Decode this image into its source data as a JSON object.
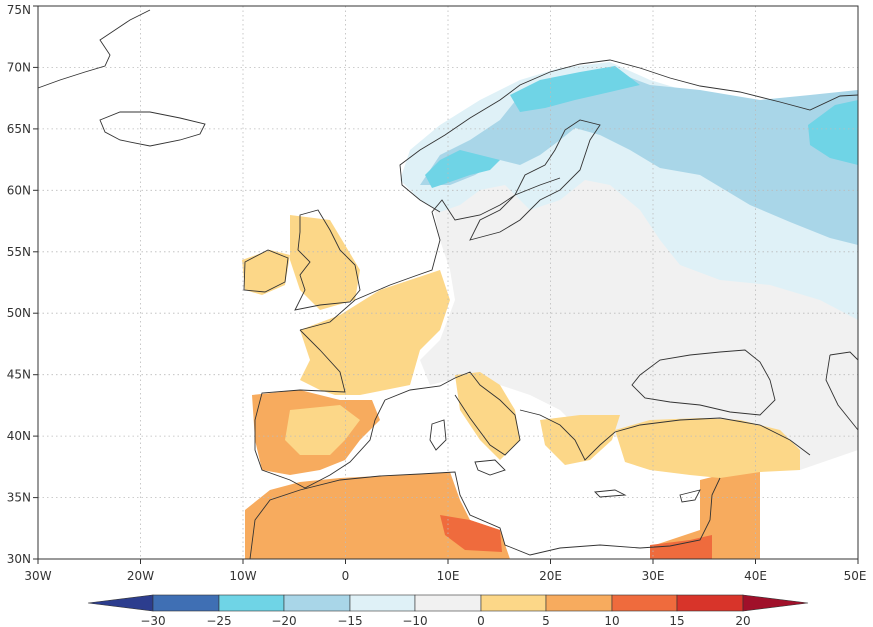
{
  "map": {
    "lon_range": [
      -30,
      50
    ],
    "lat_range": [
      30,
      75
    ],
    "lon_ticks": [
      "30W",
      "20W",
      "10W",
      "0",
      "10E",
      "20E",
      "30E",
      "40E",
      "50E"
    ],
    "lat_ticks": [
      "30N",
      "35N",
      "40N",
      "45N",
      "50N",
      "55N",
      "60N",
      "65N",
      "70N",
      "75N"
    ],
    "gridlines": "dotted",
    "colors": {
      "anomaly_warm_1": "#fcd788",
      "anomaly_warm_2": "#f7ab5e",
      "anomaly_warm_3": "#ef6b3d",
      "anomaly_near_zero": "#f1f1f1",
      "anomaly_cold_1": "#dff1f7",
      "anomaly_cold_2": "#a9d6e8",
      "anomaly_cold_3": "#6fd4e6",
      "coastline": "#333333"
    }
  },
  "colorbar": {
    "labels": [
      "−30",
      "−25",
      "−20",
      "−15",
      "−10",
      "0",
      "5",
      "10",
      "15",
      "20"
    ],
    "bins": [
      {
        "color": "#3f6fb4"
      },
      {
        "color": "#6fd4e6"
      },
      {
        "color": "#a9d6e8"
      },
      {
        "color": "#dff1f7"
      },
      {
        "color": "#f1f1f1"
      },
      {
        "color": "#fcd788"
      },
      {
        "color": "#f7ab5e"
      },
      {
        "color": "#ef6b3d"
      },
      {
        "color": "#d8342a"
      }
    ],
    "under_color": "#2c3d8e",
    "over_color": "#a0102a"
  }
}
